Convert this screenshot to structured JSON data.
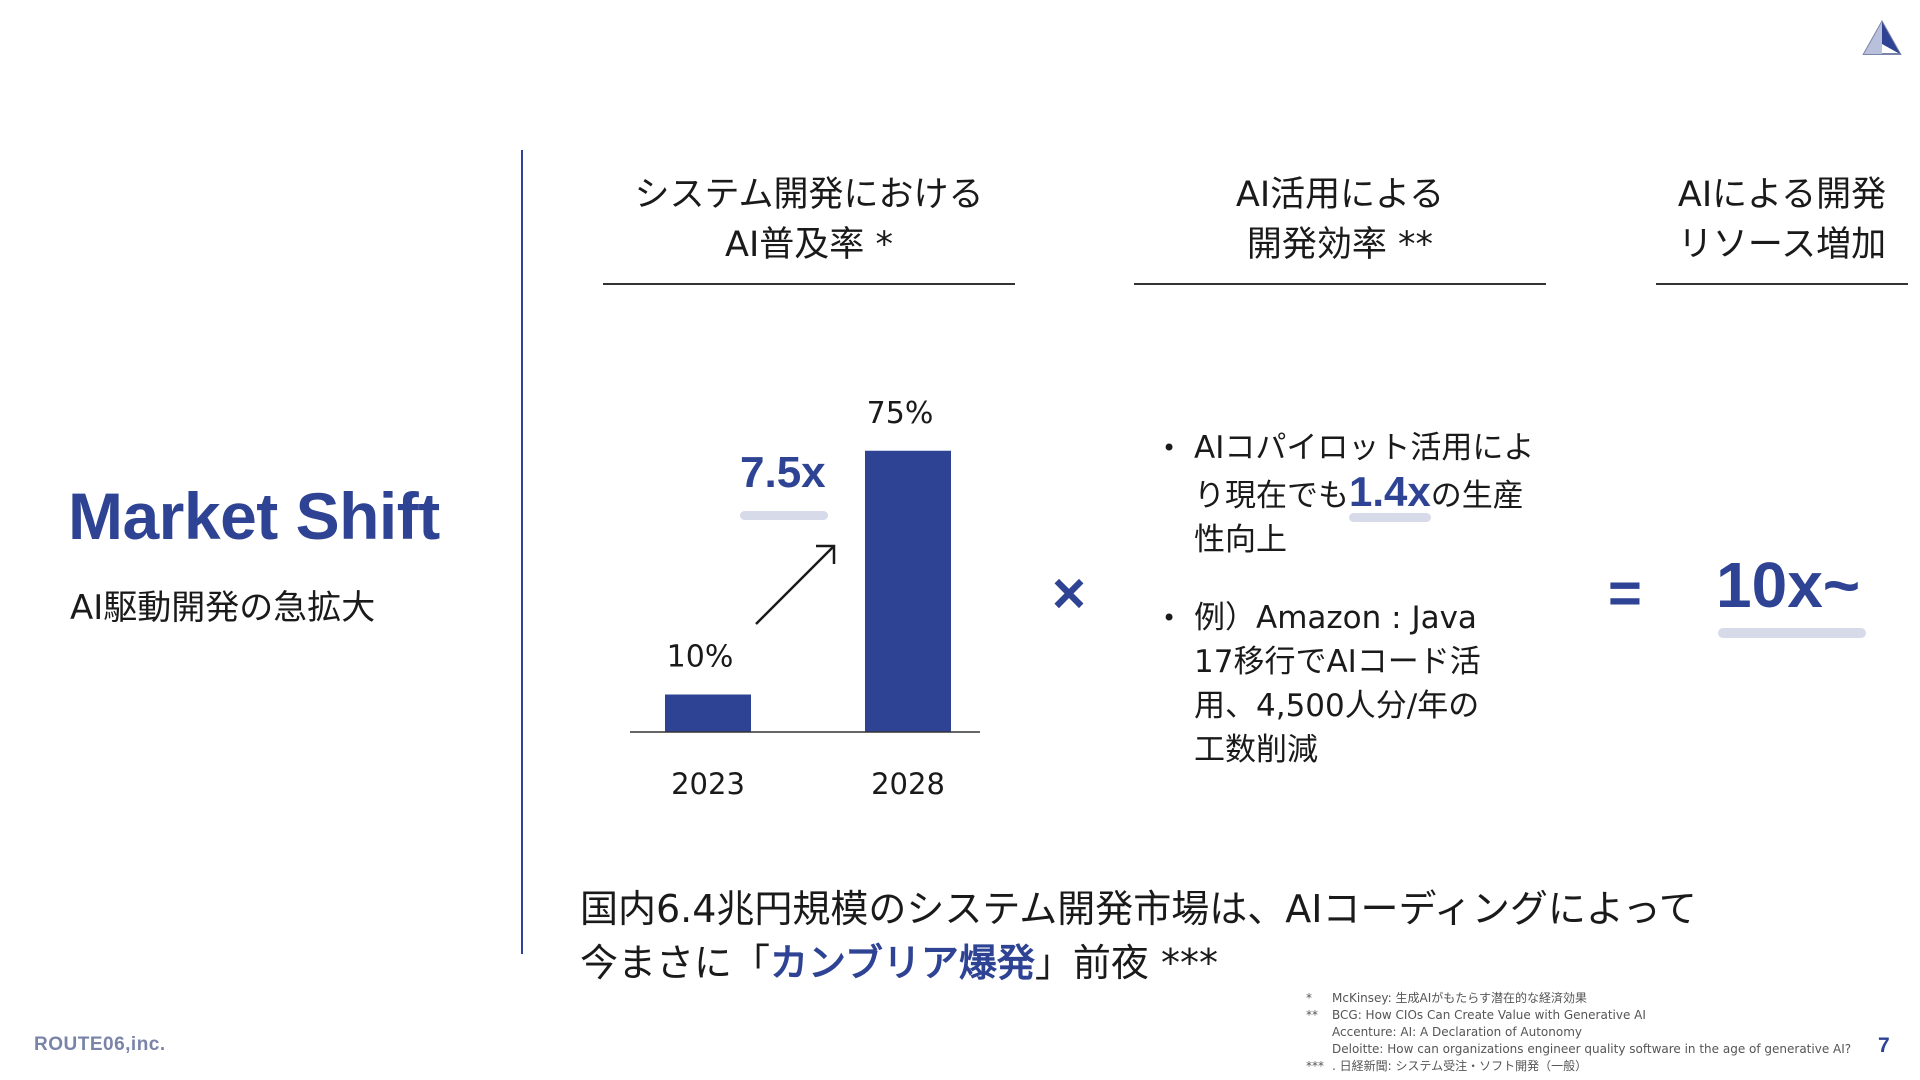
{
  "slide": {
    "title": "Market Shift",
    "subtitle": "AI駆動開発の急拡大",
    "page_number": "7",
    "company": "ROUTE06,inc.",
    "brand_color": "#2e4393"
  },
  "columns": [
    {
      "line1": "システム開発における",
      "line2": "AI普及率 *"
    },
    {
      "line1": "AI活用による",
      "line2": "開発効率 **"
    },
    {
      "line1": "AIによる開発",
      "line2": "リソース増加"
    }
  ],
  "chart_data": {
    "type": "bar",
    "categories": [
      "2023",
      "2028"
    ],
    "values": [
      10,
      75
    ],
    "value_labels": [
      "10%",
      "75%"
    ],
    "ylim": [
      0,
      80
    ],
    "color": "#2e4393",
    "annotation": "7.5x"
  },
  "operators": {
    "times": "×",
    "equals": "="
  },
  "bullets": [
    {
      "pre": "AIコパイロット活用により現在でも",
      "highlight": "1.4x",
      "post": "の生産性向上"
    },
    {
      "text_line1": "例）Amazon : Java",
      "text_line2": "17移行でAIコード活",
      "text_line3": "用、4,500人分/年の",
      "text_line4": "工数削減"
    }
  ],
  "result": "10x~",
  "conclusion": {
    "line1": "国内6.4兆円規模のシステム開発市場は、AIコーディングによって",
    "line2_pre": "今まさに「",
    "line2_accent": "カンブリア爆発",
    "line2_post": "」前夜 ***"
  },
  "footnotes": [
    {
      "mark": "*",
      "text": "McKinsey: 生成AIがもたらす潜在的な経済効果"
    },
    {
      "mark": "**",
      "text": "BCG: How CIOs Can Create Value with Generative AI"
    },
    {
      "mark": "",
      "text": "Accenture: AI: A Declaration  of Autonomy"
    },
    {
      "mark": "",
      "text": "Deloitte: How can organizations engineer quality software in the age of generative AI?"
    },
    {
      "mark": "***",
      "text": ". 日経新聞: システム受注・ソフト開発（一般）"
    }
  ]
}
